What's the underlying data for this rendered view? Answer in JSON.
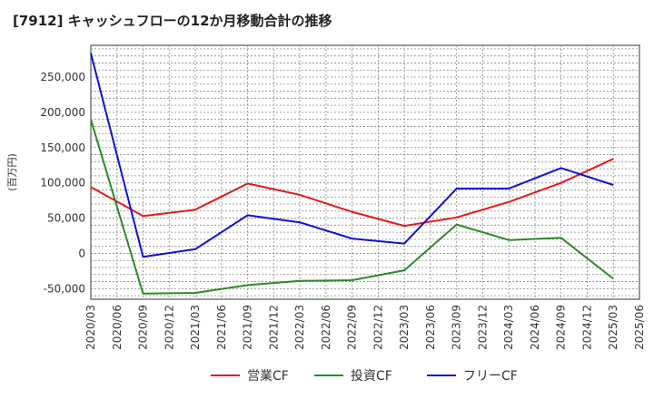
{
  "chart_data": {
    "type": "line",
    "title": "[7912]  キャッシュフローの12か月移動合計の推移",
    "ylabel": "(百万円)",
    "xlabel": "",
    "ylim": [
      -65000,
      295000
    ],
    "yticks": [
      -50000,
      0,
      50000,
      100000,
      150000,
      200000,
      250000
    ],
    "ytick_labels": [
      "-50,000",
      "0",
      "50,000",
      "100,000",
      "150,000",
      "200,000",
      "250,000"
    ],
    "x": [
      "2020/03",
      "2020/06",
      "2020/09",
      "2020/12",
      "2021/03",
      "2021/06",
      "2021/09",
      "2021/12",
      "2022/03",
      "2022/06",
      "2022/09",
      "2022/12",
      "2023/03",
      "2023/06",
      "2023/09",
      "2023/12",
      "2024/03",
      "2024/06",
      "2024/09",
      "2024/12",
      "2025/03",
      "2025/06"
    ],
    "series": [
      {
        "name": "営業CF",
        "color": "#e31a1c",
        "values": [
          94000,
          null,
          53000,
          null,
          62000,
          null,
          99000,
          null,
          83000,
          null,
          59000,
          null,
          39000,
          null,
          51000,
          null,
          73000,
          null,
          100000,
          null,
          134000,
          null
        ]
      },
      {
        "name": "投資CF",
        "color": "#2a8a2a",
        "values": [
          190000,
          null,
          -57000,
          null,
          -56000,
          null,
          -45000,
          null,
          -39000,
          null,
          -38000,
          null,
          -24000,
          null,
          41000,
          null,
          19000,
          null,
          22000,
          null,
          -36000,
          null
        ]
      },
      {
        "name": "フリーCF",
        "color": "#1010d8",
        "values": [
          284000,
          null,
          -5000,
          null,
          6000,
          null,
          54000,
          null,
          44000,
          null,
          21000,
          null,
          14000,
          null,
          92000,
          null,
          92000,
          null,
          121000,
          null,
          97000,
          null
        ]
      }
    ],
    "legend_position": "bottom",
    "grid": true
  }
}
